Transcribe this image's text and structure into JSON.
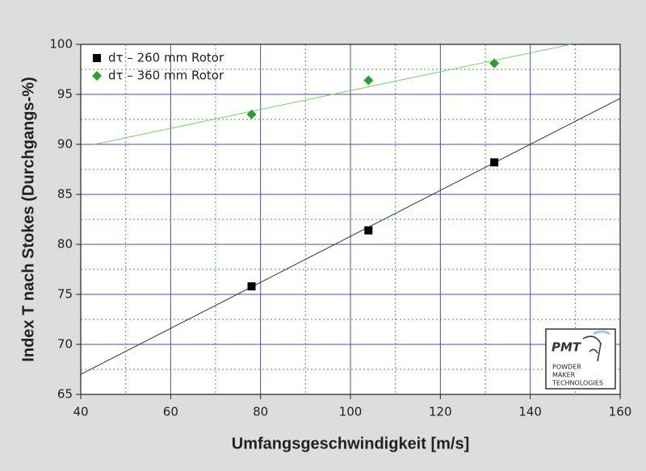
{
  "chart_data": {
    "type": "scatter",
    "x_label": "Umfangsgeschwindigkeit [m/s]",
    "y_label": "Index T nach Stokes (Durchgangs-%)",
    "xlim": [
      40,
      160
    ],
    "xticks": [
      40,
      60,
      80,
      100,
      120,
      140,
      160
    ],
    "ylim": [
      65,
      100
    ],
    "yticks": [
      65,
      70,
      75,
      80,
      85,
      90,
      95,
      100
    ],
    "x_minor_ticks": [
      50,
      70,
      90,
      110,
      130,
      150
    ],
    "y_minor_ticks": [
      67.5,
      72.5,
      77.5,
      82.5,
      87.5,
      92.5,
      97.5
    ],
    "grid": true,
    "legend": "upper left",
    "series": [
      {
        "name": "dτ – 260 mm Rotor",
        "color": "#000000",
        "marker": "square",
        "x": [
          78,
          104,
          132
        ],
        "values": [
          75.8,
          81.4,
          88.2
        ]
      },
      {
        "name": "dτ – 360 mm Rotor",
        "color": "#2ca02c",
        "marker": "diamond",
        "x": [
          78,
          104,
          132
        ],
        "values": [
          93.0,
          96.4,
          98.1
        ]
      }
    ],
    "fit_lines": [
      {
        "color": "#333333",
        "x": [
          40,
          160
        ],
        "values": [
          67.0,
          94.6
        ]
      },
      {
        "color": "#7ccf6c",
        "x": [
          43,
          149
        ],
        "values": [
          90.0,
          100.0
        ]
      }
    ]
  },
  "logo": {
    "title": "PMT",
    "lines": [
      "POWDER",
      "MAKER",
      "TECHNOLOGIES"
    ]
  }
}
